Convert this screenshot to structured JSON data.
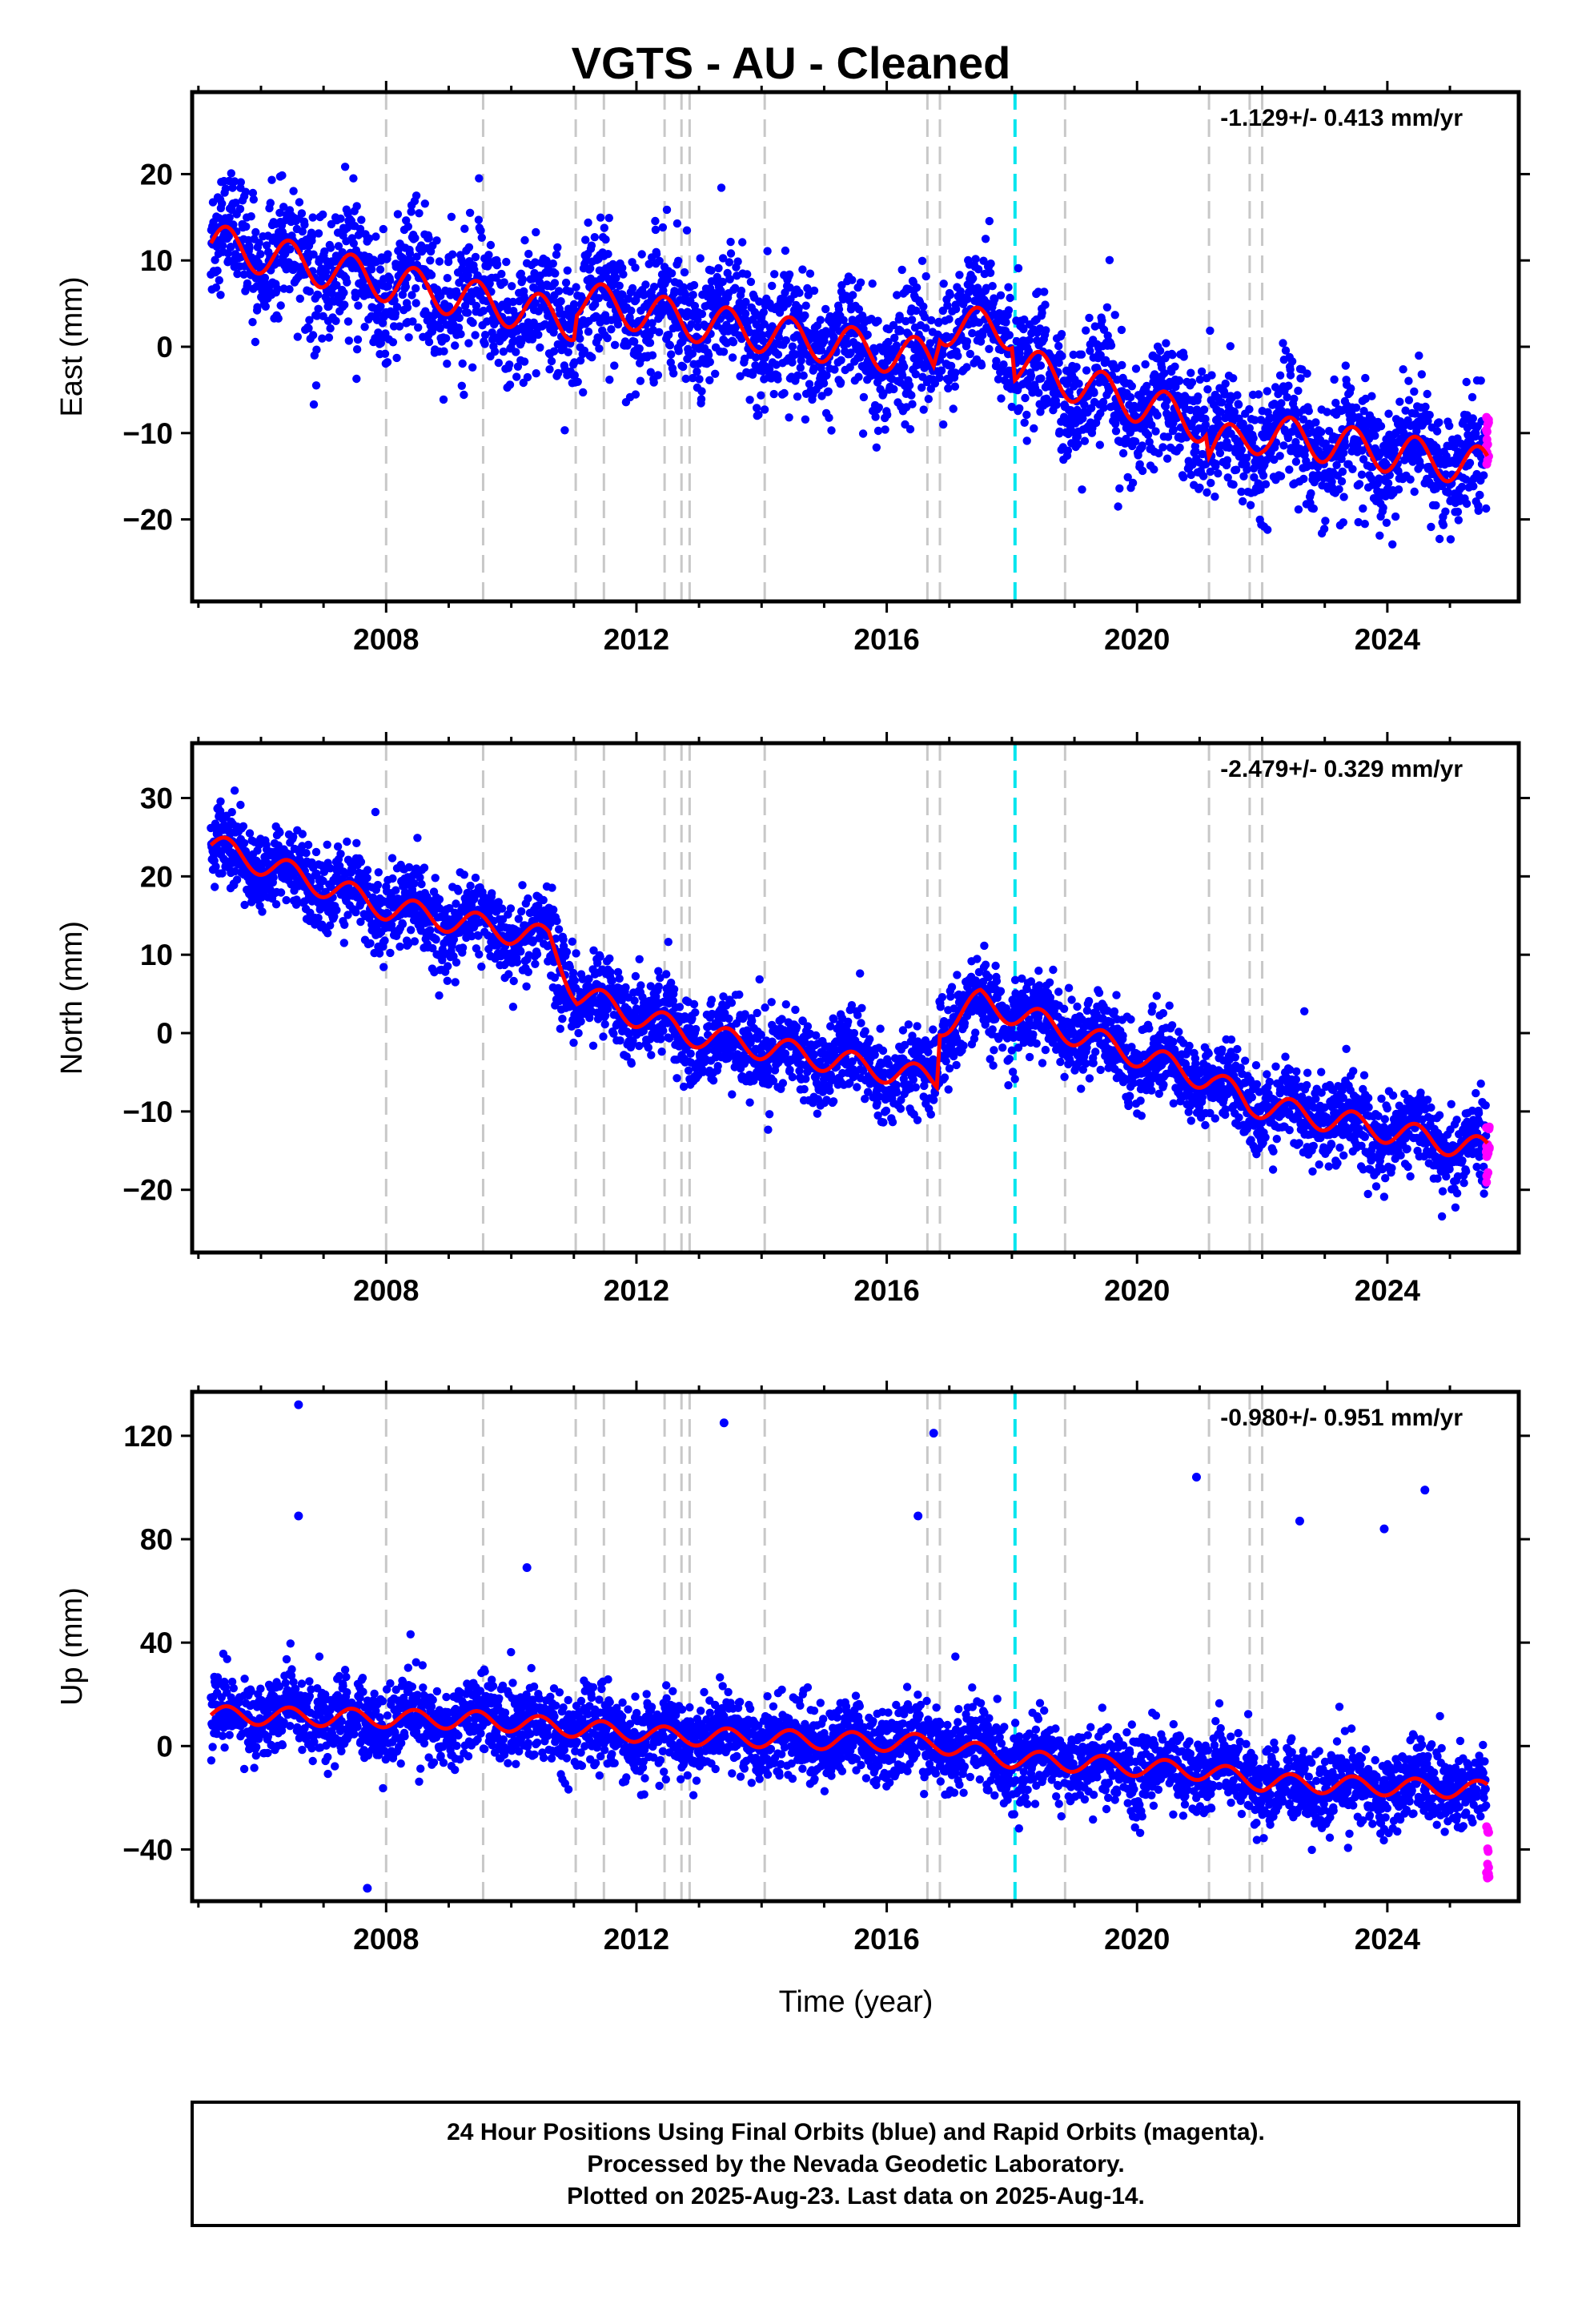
{
  "title": "VGTS  - AU - Cleaned",
  "colors": {
    "final_points": "#0000ff",
    "rapid_points": "#ff00ff",
    "model": "#ff0000",
    "event_lines": "#c8c8c8",
    "equipment_line": "#00e5ee",
    "frame": "#000000"
  },
  "xlabel": "Time (year)",
  "x_ticks": [
    "2008",
    "2012",
    "2016",
    "2020",
    "2024"
  ],
  "event_line_years": [
    2008.0,
    2009.55,
    2011.03,
    2011.48,
    2012.45,
    2012.72,
    2012.85,
    2014.05,
    2016.65,
    2016.85,
    2018.85,
    2021.15,
    2021.8,
    2022.0
  ],
  "equipment_line_year": 2018.05,
  "footer": {
    "line1": "24 Hour Positions Using Final Orbits (blue) and Rapid Orbits (magenta).",
    "line2": "Processed by the Nevada Geodetic Laboratory.",
    "line3": "Plotted on 2025-Aug-23. Last data on 2025-Aug-14."
  },
  "chart_data": [
    {
      "type": "scatter",
      "panel": "east",
      "ylabel": "East (mm)",
      "rate_text": "-1.129+/- 0.413 mm/yr",
      "xlim": [
        2004.9,
        2026.1
      ],
      "ylim": [
        -29.5,
        29.5
      ],
      "y_ticks": [
        "20",
        "10",
        "0",
        "-10",
        "-20"
      ],
      "y_tick_values": [
        20,
        10,
        0,
        -10,
        -20
      ],
      "model_trend": [
        [
          2005.2,
          12
        ],
        [
          2008.0,
          7.5
        ],
        [
          2011.0,
          3
        ],
        [
          2011.05,
          5.5
        ],
        [
          2012.8,
          3
        ],
        [
          2016.75,
          -1.5
        ],
        [
          2016.85,
          2.5
        ],
        [
          2018.0,
          2
        ],
        [
          2018.05,
          -2
        ],
        [
          2021.1,
          -9
        ],
        [
          2021.15,
          -12
        ],
        [
          2022.0,
          -10
        ],
        [
          2025.6,
          -14
        ]
      ],
      "seasonal_amplitude": 2.3,
      "scatter_sd": 3.5,
      "rapid_range": [
        -14,
        -8
      ]
    },
    {
      "type": "scatter",
      "panel": "north",
      "ylabel": "North (mm)",
      "rate_text": "-2.479+/- 0.329 mm/yr",
      "xlim": [
        2004.9,
        2026.1
      ],
      "ylim": [
        -28,
        37
      ],
      "y_ticks": [
        "30",
        "20",
        "10",
        "0",
        "-10",
        "-20"
      ],
      "y_tick_values": [
        30,
        20,
        10,
        0,
        -10,
        -20
      ],
      "model_trend": [
        [
          2005.2,
          24
        ],
        [
          2008.0,
          16
        ],
        [
          2010.6,
          12
        ],
        [
          2011.05,
          5
        ],
        [
          2012.8,
          0
        ],
        [
          2016.8,
          -6
        ],
        [
          2016.85,
          1
        ],
        [
          2017.5,
          4
        ],
        [
          2021.2,
          -6
        ],
        [
          2021.8,
          -9
        ],
        [
          2025.6,
          -15
        ]
      ],
      "seasonal_amplitude": 1.6,
      "scatter_sd": 2.6,
      "rapid_range": [
        -20,
        -11
      ]
    },
    {
      "type": "scatter",
      "panel": "up",
      "ylabel": "Up (mm)",
      "rate_text": "-0.980+/- 0.951 mm/yr",
      "xlim": [
        2004.9,
        2026.1
      ],
      "ylim": [
        -60,
        137
      ],
      "y_ticks": [
        "120",
        "80",
        "40",
        "0",
        "-40"
      ],
      "y_tick_values": [
        120,
        80,
        40,
        0,
        -40
      ],
      "model_trend": [
        [
          2005.2,
          12
        ],
        [
          2009.5,
          10
        ],
        [
          2012.5,
          4
        ],
        [
          2016.8,
          1
        ],
        [
          2018.0,
          -5
        ],
        [
          2021.2,
          -10
        ],
        [
          2022.0,
          -14
        ],
        [
          2025.6,
          -17
        ]
      ],
      "seasonal_amplitude": 3.5,
      "scatter_sd": 7.5,
      "rapid_range": [
        -52,
        -30
      ],
      "outliers": [
        [
          2006.6,
          132
        ],
        [
          2006.6,
          89
        ],
        [
          2013.4,
          125
        ],
        [
          2016.75,
          121
        ],
        [
          2016.5,
          89
        ],
        [
          2020.95,
          104
        ],
        [
          2024.6,
          99
        ],
        [
          2022.6,
          87
        ],
        [
          2023.95,
          84
        ],
        [
          2010.25,
          69
        ],
        [
          2007.7,
          -55
        ]
      ]
    }
  ]
}
